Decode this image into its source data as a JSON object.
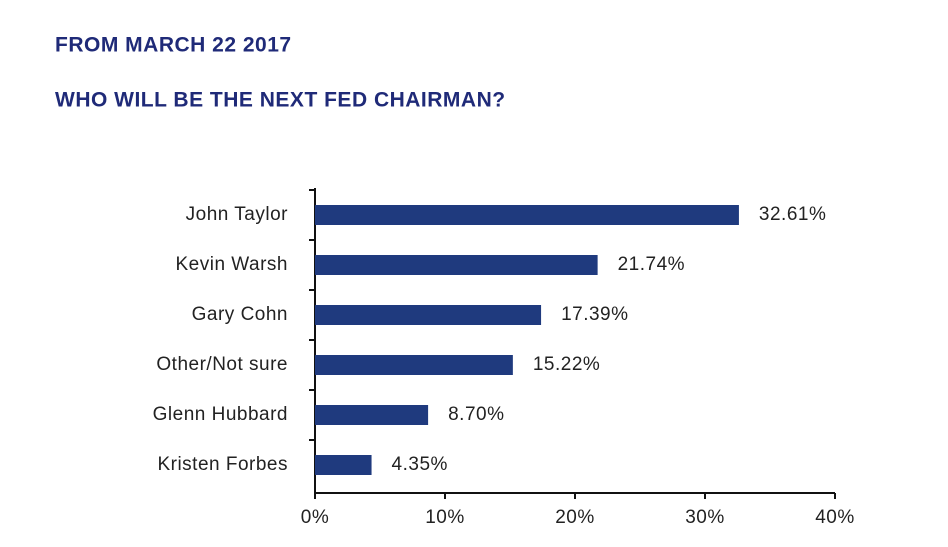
{
  "chart_data": {
    "type": "hbar",
    "title": "FROM MARCH 22 2017",
    "subtitle": "WHO WILL BE THE NEXT FED CHAIRMAN?",
    "categories": [
      "John Taylor",
      "Kevin Warsh",
      "Gary Cohn",
      "Other/Not sure",
      "Glenn Hubbard",
      "Kristen Forbes"
    ],
    "values": [
      32.61,
      21.74,
      17.39,
      15.22,
      8.7,
      4.35
    ],
    "value_labels": [
      "32.61%",
      "21.74%",
      "17.39%",
      "15.22%",
      "8.70%",
      "4.35%"
    ],
    "color": "#1f3a7e",
    "xlim": [
      0,
      40
    ],
    "xticks": [
      {
        "value": 0,
        "label": "0%"
      },
      {
        "value": 10,
        "label": "10%"
      },
      {
        "value": 20,
        "label": "20%"
      },
      {
        "value": 30,
        "label": "30%"
      },
      {
        "value": 40,
        "label": "40%"
      }
    ],
    "grid": false
  }
}
